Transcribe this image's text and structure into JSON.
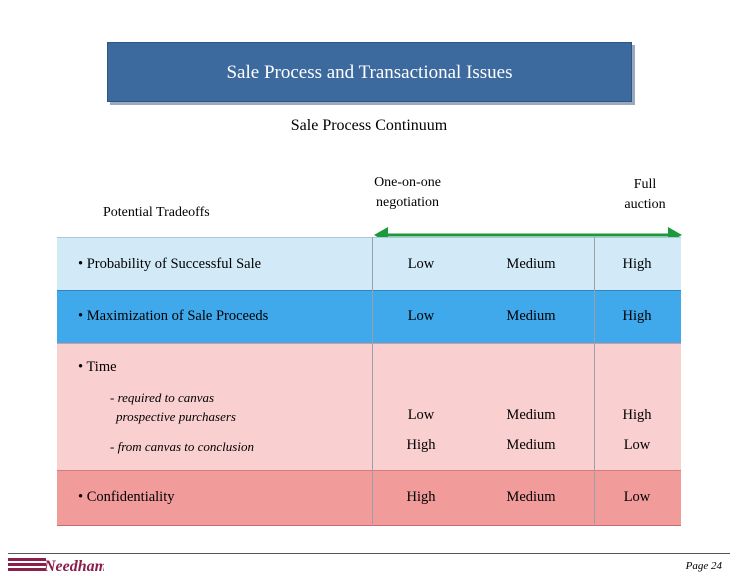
{
  "title": "Sale Process and Transactional Issues",
  "subtitle": "Sale Process Continuum",
  "headers": {
    "left": "Potential Tradeoffs",
    "one_on_one_l1": "One-on-one",
    "one_on_one_l2": "negotiation",
    "full_l1": "Full",
    "full_l2": "auction"
  },
  "rows": {
    "probability": {
      "label": "• Probability of Successful Sale",
      "v1": "Low",
      "v2": "Medium",
      "v3": "High"
    },
    "maximization": {
      "label": "• Maximization of Sale Proceeds",
      "v1": "Low",
      "v2": "Medium",
      "v3": "High"
    },
    "time": {
      "label": "• Time"
    },
    "required": {
      "label_l1": "- required to canvas",
      "label_l2": "prospective purchasers",
      "v1": "Low",
      "v2": "Medium",
      "v3": "High"
    },
    "conclusion": {
      "label": "- from canvas to conclusion",
      "v1": "High",
      "v2": "Medium",
      "v3": "Low"
    },
    "confidentiality": {
      "label": "• Confidentiality",
      "v1": "High",
      "v2": "Medium",
      "v3": "Low"
    }
  },
  "colors": {
    "title_bg": "#3d6a9e",
    "band_blue_light": "#d2eaf8",
    "band_blue": "#3fa9ec",
    "band_pink": "#f9cfcf",
    "band_pink_dark": "#f29b9b",
    "arrow": "#1b9a3b",
    "logo": "#8b1f4b"
  },
  "logo_text": "Needham",
  "page_number": "Page 24"
}
